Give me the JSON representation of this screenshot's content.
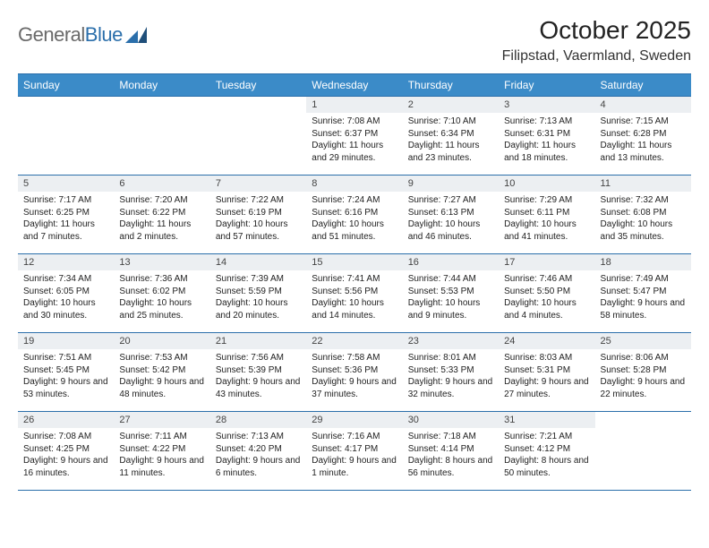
{
  "logo": {
    "text_general": "General",
    "text_blue": "Blue"
  },
  "header": {
    "month_title": "October 2025",
    "location": "Filipstad, Vaermland, Sweden"
  },
  "colors": {
    "header_bg": "#3b8bc8",
    "border": "#2b6fab",
    "daynum_bg": "#eceff2",
    "logo_gray": "#6a6a6a",
    "logo_blue": "#2b6fab"
  },
  "weekdays": [
    "Sunday",
    "Monday",
    "Tuesday",
    "Wednesday",
    "Thursday",
    "Friday",
    "Saturday"
  ],
  "weeks": [
    [
      {
        "empty": true
      },
      {
        "empty": true
      },
      {
        "empty": true
      },
      {
        "day": "1",
        "sunrise": "7:08 AM",
        "sunset": "6:37 PM",
        "daylight": "11 hours and 29 minutes."
      },
      {
        "day": "2",
        "sunrise": "7:10 AM",
        "sunset": "6:34 PM",
        "daylight": "11 hours and 23 minutes."
      },
      {
        "day": "3",
        "sunrise": "7:13 AM",
        "sunset": "6:31 PM",
        "daylight": "11 hours and 18 minutes."
      },
      {
        "day": "4",
        "sunrise": "7:15 AM",
        "sunset": "6:28 PM",
        "daylight": "11 hours and 13 minutes."
      }
    ],
    [
      {
        "day": "5",
        "sunrise": "7:17 AM",
        "sunset": "6:25 PM",
        "daylight": "11 hours and 7 minutes."
      },
      {
        "day": "6",
        "sunrise": "7:20 AM",
        "sunset": "6:22 PM",
        "daylight": "11 hours and 2 minutes."
      },
      {
        "day": "7",
        "sunrise": "7:22 AM",
        "sunset": "6:19 PM",
        "daylight": "10 hours and 57 minutes."
      },
      {
        "day": "8",
        "sunrise": "7:24 AM",
        "sunset": "6:16 PM",
        "daylight": "10 hours and 51 minutes."
      },
      {
        "day": "9",
        "sunrise": "7:27 AM",
        "sunset": "6:13 PM",
        "daylight": "10 hours and 46 minutes."
      },
      {
        "day": "10",
        "sunrise": "7:29 AM",
        "sunset": "6:11 PM",
        "daylight": "10 hours and 41 minutes."
      },
      {
        "day": "11",
        "sunrise": "7:32 AM",
        "sunset": "6:08 PM",
        "daylight": "10 hours and 35 minutes."
      }
    ],
    [
      {
        "day": "12",
        "sunrise": "7:34 AM",
        "sunset": "6:05 PM",
        "daylight": "10 hours and 30 minutes."
      },
      {
        "day": "13",
        "sunrise": "7:36 AM",
        "sunset": "6:02 PM",
        "daylight": "10 hours and 25 minutes."
      },
      {
        "day": "14",
        "sunrise": "7:39 AM",
        "sunset": "5:59 PM",
        "daylight": "10 hours and 20 minutes."
      },
      {
        "day": "15",
        "sunrise": "7:41 AM",
        "sunset": "5:56 PM",
        "daylight": "10 hours and 14 minutes."
      },
      {
        "day": "16",
        "sunrise": "7:44 AM",
        "sunset": "5:53 PM",
        "daylight": "10 hours and 9 minutes."
      },
      {
        "day": "17",
        "sunrise": "7:46 AM",
        "sunset": "5:50 PM",
        "daylight": "10 hours and 4 minutes."
      },
      {
        "day": "18",
        "sunrise": "7:49 AM",
        "sunset": "5:47 PM",
        "daylight": "9 hours and 58 minutes."
      }
    ],
    [
      {
        "day": "19",
        "sunrise": "7:51 AM",
        "sunset": "5:45 PM",
        "daylight": "9 hours and 53 minutes."
      },
      {
        "day": "20",
        "sunrise": "7:53 AM",
        "sunset": "5:42 PM",
        "daylight": "9 hours and 48 minutes."
      },
      {
        "day": "21",
        "sunrise": "7:56 AM",
        "sunset": "5:39 PM",
        "daylight": "9 hours and 43 minutes."
      },
      {
        "day": "22",
        "sunrise": "7:58 AM",
        "sunset": "5:36 PM",
        "daylight": "9 hours and 37 minutes."
      },
      {
        "day": "23",
        "sunrise": "8:01 AM",
        "sunset": "5:33 PM",
        "daylight": "9 hours and 32 minutes."
      },
      {
        "day": "24",
        "sunrise": "8:03 AM",
        "sunset": "5:31 PM",
        "daylight": "9 hours and 27 minutes."
      },
      {
        "day": "25",
        "sunrise": "8:06 AM",
        "sunset": "5:28 PM",
        "daylight": "9 hours and 22 minutes."
      }
    ],
    [
      {
        "day": "26",
        "sunrise": "7:08 AM",
        "sunset": "4:25 PM",
        "daylight": "9 hours and 16 minutes."
      },
      {
        "day": "27",
        "sunrise": "7:11 AM",
        "sunset": "4:22 PM",
        "daylight": "9 hours and 11 minutes."
      },
      {
        "day": "28",
        "sunrise": "7:13 AM",
        "sunset": "4:20 PM",
        "daylight": "9 hours and 6 minutes."
      },
      {
        "day": "29",
        "sunrise": "7:16 AM",
        "sunset": "4:17 PM",
        "daylight": "9 hours and 1 minute."
      },
      {
        "day": "30",
        "sunrise": "7:18 AM",
        "sunset": "4:14 PM",
        "daylight": "8 hours and 56 minutes."
      },
      {
        "day": "31",
        "sunrise": "7:21 AM",
        "sunset": "4:12 PM",
        "daylight": "8 hours and 50 minutes."
      },
      {
        "empty": true
      }
    ]
  ],
  "labels": {
    "sunrise_prefix": "Sunrise: ",
    "sunset_prefix": "Sunset: ",
    "daylight_prefix": "Daylight: "
  }
}
